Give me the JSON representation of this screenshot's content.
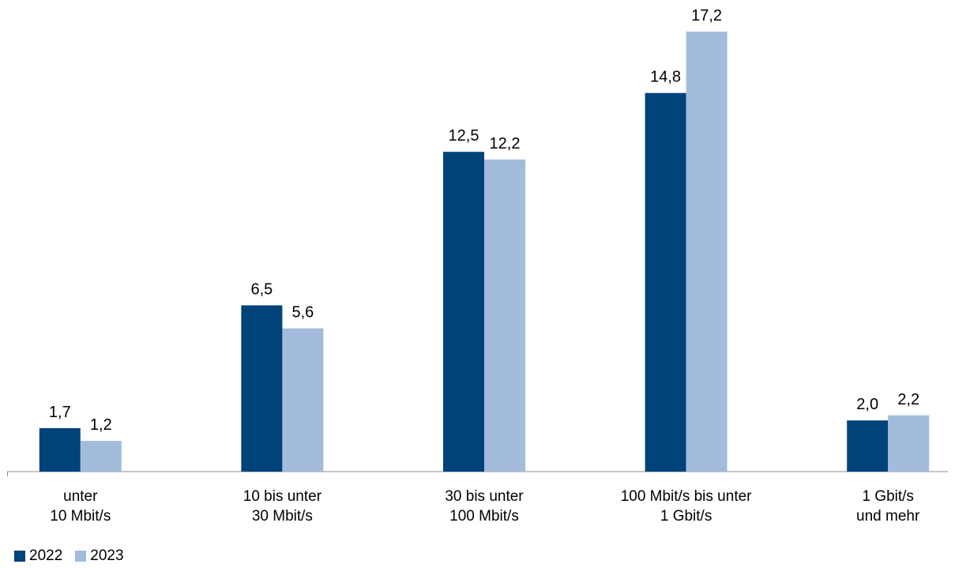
{
  "chart_data": {
    "type": "bar",
    "categories": [
      [
        "unter",
        "10 Mbit/s"
      ],
      [
        "10 bis unter",
        "30 Mbit/s"
      ],
      [
        "30 bis unter",
        "100 Mbit/s"
      ],
      [
        "100 Mbit/s bis unter",
        "1 Gbit/s"
      ],
      [
        "1 Gbit/s",
        "und mehr"
      ]
    ],
    "series": [
      {
        "name": "2022",
        "color": "#00427a",
        "values": [
          1.7,
          6.5,
          12.5,
          14.8,
          2.0
        ],
        "labels": [
          "1,7",
          "6,5",
          "12,5",
          "14,8",
          "2,0"
        ]
      },
      {
        "name": "2023",
        "color": "#a3bcdc",
        "values": [
          1.2,
          5.6,
          12.2,
          17.2,
          2.2
        ],
        "labels": [
          "1,2",
          "5,6",
          "12,2",
          "17,2",
          "2,2"
        ]
      }
    ],
    "title": "",
    "xlabel": "",
    "ylabel": "",
    "ylim": [
      0,
      17.2
    ],
    "grid": false,
    "legend": "bottom-left"
  }
}
